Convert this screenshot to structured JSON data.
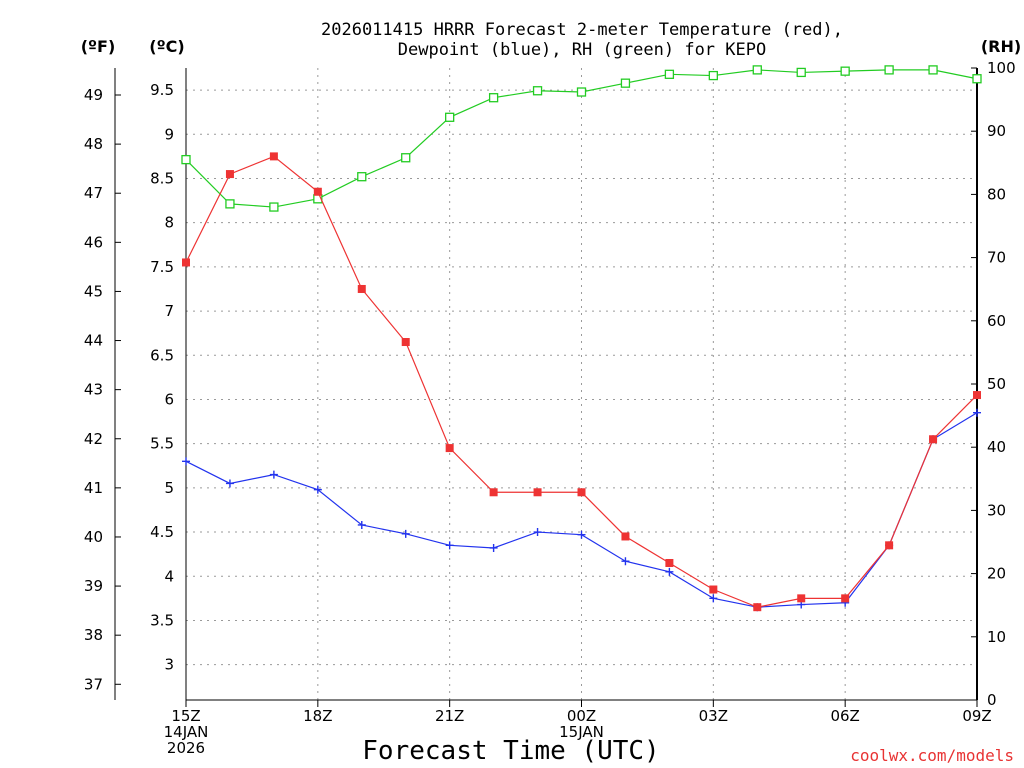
{
  "chart_data": {
    "type": "line",
    "title_line1": "2026011415 HRRR Forecast 2-meter Temperature (red),",
    "title_line2": "Dewpoint (blue), RH (green) for KEPO",
    "xlabel": "Forecast Time (UTC)",
    "credit": "coolwx.com/models",
    "unit_labels": {
      "fahrenheit": "(ºF)",
      "celsius": "(ºC)",
      "rh": "(RH)"
    },
    "x_hours": [
      0,
      1,
      2,
      3,
      4,
      5,
      6,
      7,
      8,
      9,
      10,
      11,
      12,
      13,
      14,
      15,
      16,
      17,
      18
    ],
    "xlim": [
      0,
      18
    ],
    "x_ticks": [
      {
        "hour": 0,
        "lines": [
          "15Z",
          "14JAN",
          "2026"
        ]
      },
      {
        "hour": 3,
        "lines": [
          "18Z"
        ]
      },
      {
        "hour": 6,
        "lines": [
          "21Z"
        ]
      },
      {
        "hour": 9,
        "lines": [
          "00Z",
          "15JAN"
        ]
      },
      {
        "hour": 12,
        "lines": [
          "03Z"
        ]
      },
      {
        "hour": 15,
        "lines": [
          "06Z"
        ]
      },
      {
        "hour": 18,
        "lines": [
          "09Z"
        ]
      }
    ],
    "ylim_c": [
      2.6,
      9.75
    ],
    "ylim_rh": [
      0,
      100
    ],
    "celsius_ticks": [
      "3",
      "3.5",
      "4",
      "4.5",
      "5",
      "5.5",
      "6",
      "6.5",
      "7",
      "7.5",
      "8",
      "8.5",
      "9",
      "9.5"
    ],
    "fahrenheit_ticks": [
      "37",
      "38",
      "39",
      "40",
      "41",
      "42",
      "43",
      "44",
      "45",
      "46",
      "47",
      "48",
      "49"
    ],
    "rh_ticks": [
      "0",
      "10",
      "20",
      "30",
      "40",
      "50",
      "60",
      "70",
      "80",
      "90",
      "100"
    ],
    "grid": true,
    "series": [
      {
        "name": "Temperature (C)",
        "color": "#ee3333",
        "marker": "filled-square",
        "axis": "c",
        "values": [
          7.55,
          8.55,
          8.75,
          8.35,
          7.25,
          6.65,
          5.45,
          4.95,
          4.95,
          4.95,
          4.45,
          4.15,
          3.85,
          3.65,
          3.75,
          3.75,
          4.35,
          5.55,
          6.05
        ]
      },
      {
        "name": "Dewpoint (C)",
        "color": "#2233ee",
        "marker": "plus",
        "axis": "c",
        "values": [
          5.3,
          5.05,
          5.15,
          4.98,
          4.58,
          4.48,
          4.35,
          4.32,
          4.5,
          4.47,
          4.17,
          4.05,
          3.75,
          3.65,
          3.68,
          3.7,
          4.35,
          5.55,
          5.85
        ]
      },
      {
        "name": "RH (%)",
        "color": "#22cc22",
        "marker": "open-square",
        "axis": "rh",
        "values": [
          85.5,
          78.5,
          78,
          79.3,
          82.8,
          85.8,
          92.2,
          95.3,
          96.4,
          96.2,
          97.6,
          99,
          98.8,
          99.7,
          99.3,
          99.5,
          99.7,
          99.7,
          98.3
        ]
      }
    ]
  }
}
